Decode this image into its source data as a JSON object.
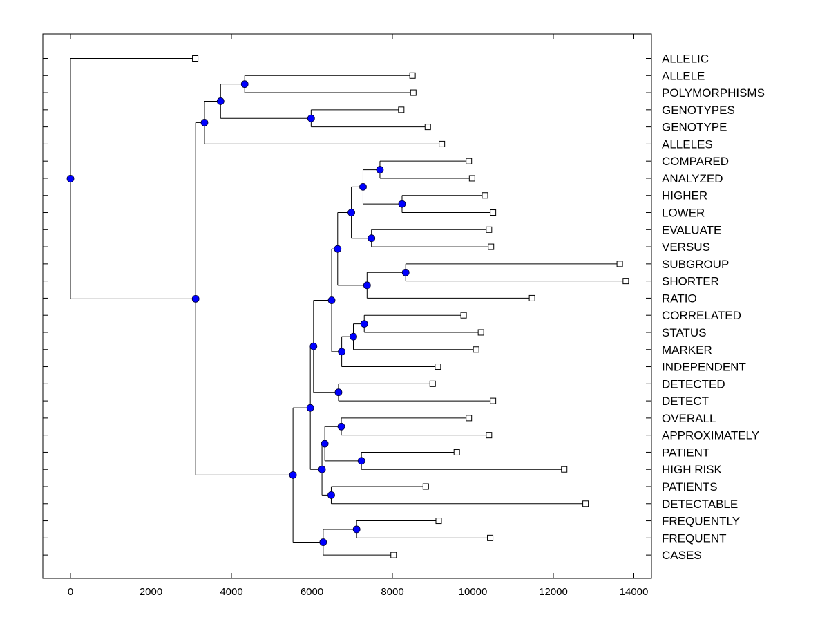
{
  "chart_data": {
    "type": "dendrogram",
    "orientation": "horizontal",
    "xlim": [
      -700,
      14500
    ],
    "x_ticks": [
      0,
      2000,
      4000,
      6000,
      8000,
      10000,
      12000,
      14000
    ],
    "x_tick_labels": [
      "0",
      "2000",
      "4000",
      "6000",
      "8000",
      "10000",
      "12000",
      "14000"
    ],
    "colors": {
      "node_fill": "#0000ff",
      "line": "#000000",
      "leaf_fill": "#ffffff"
    },
    "leaves": [
      {
        "label": "ALLELIC",
        "x": 3100
      },
      {
        "label": "ALLELE",
        "x": 8500
      },
      {
        "label": "POLYMORPHISMS",
        "x": 8520
      },
      {
        "label": "GENOTYPES",
        "x": 8220
      },
      {
        "label": "GENOTYPE",
        "x": 8880
      },
      {
        "label": "ALLELES",
        "x": 9230
      },
      {
        "label": "COMPARED",
        "x": 9900
      },
      {
        "label": "ANALYZED",
        "x": 9980
      },
      {
        "label": "HIGHER",
        "x": 10300
      },
      {
        "label": "LOWER",
        "x": 10500
      },
      {
        "label": "EVALUATE",
        "x": 10400
      },
      {
        "label": "VERSUS",
        "x": 10450
      },
      {
        "label": "SUBGROUP",
        "x": 13650
      },
      {
        "label": "SHORTER",
        "x": 13800
      },
      {
        "label": "RATIO",
        "x": 11470
      },
      {
        "label": "CORRELATED",
        "x": 9770
      },
      {
        "label": "STATUS",
        "x": 10200
      },
      {
        "label": "MARKER",
        "x": 10080
      },
      {
        "label": "INDEPENDENT",
        "x": 9130
      },
      {
        "label": "DETECTED",
        "x": 9000
      },
      {
        "label": "DETECT",
        "x": 10500
      },
      {
        "label": "OVERALL",
        "x": 9900
      },
      {
        "label": "APPROXIMATELY",
        "x": 10400
      },
      {
        "label": "PATIENT",
        "x": 9600
      },
      {
        "label": "HIGH RISK",
        "x": 12270
      },
      {
        "label": "PATIENTS",
        "x": 8830
      },
      {
        "label": "DETECTABLE",
        "x": 12800
      },
      {
        "label": "FREQUENTLY",
        "x": 9150
      },
      {
        "label": "FREQUENT",
        "x": 10430
      },
      {
        "label": "CASES",
        "x": 8030
      }
    ],
    "nodes": [
      {
        "id": "n_allele",
        "x": 4330,
        "children": [
          "L1",
          "L2"
        ]
      },
      {
        "id": "n_genotypes",
        "x": 5980,
        "children": [
          "L3",
          "L4"
        ]
      },
      {
        "id": "n_allele_geno",
        "x": 3730,
        "children": [
          "n_allele",
          "n_genotypes"
        ]
      },
      {
        "id": "n_allele_group",
        "x": 3330,
        "children": [
          "n_allele_geno",
          "L5"
        ]
      },
      {
        "id": "n_compared",
        "x": 7690,
        "children": [
          "L6",
          "L7"
        ]
      },
      {
        "id": "n_higher",
        "x": 8240,
        "children": [
          "L8",
          "L9"
        ]
      },
      {
        "id": "n_comp_high",
        "x": 7270,
        "children": [
          "n_compared",
          "n_higher"
        ]
      },
      {
        "id": "n_evaluate",
        "x": 7480,
        "children": [
          "L10",
          "L11"
        ]
      },
      {
        "id": "n_comp_eval",
        "x": 6980,
        "children": [
          "n_comp_high",
          "n_evaluate"
        ]
      },
      {
        "id": "n_subgroup",
        "x": 8330,
        "children": [
          "L12",
          "L13"
        ]
      },
      {
        "id": "n_sub_ratio",
        "x": 7370,
        "children": [
          "n_subgroup",
          "L14"
        ]
      },
      {
        "id": "n_upper_mid",
        "x": 6640,
        "children": [
          "n_comp_eval",
          "n_sub_ratio"
        ]
      },
      {
        "id": "n_correlated",
        "x": 7300,
        "children": [
          "L15",
          "L16"
        ]
      },
      {
        "id": "n_corr_marker",
        "x": 7030,
        "children": [
          "n_correlated",
          "L17"
        ]
      },
      {
        "id": "n_corr_indep",
        "x": 6740,
        "children": [
          "n_corr_marker",
          "L18"
        ]
      },
      {
        "id": "n_mid_a",
        "x": 6490,
        "children": [
          "n_upper_mid",
          "n_corr_indep"
        ]
      },
      {
        "id": "n_detected",
        "x": 6660,
        "children": [
          "L19",
          "L20"
        ]
      },
      {
        "id": "n_mid_b",
        "x": 6040,
        "children": [
          "n_mid_a",
          "n_detected"
        ]
      },
      {
        "id": "n_overall",
        "x": 6730,
        "children": [
          "L21",
          "L22"
        ]
      },
      {
        "id": "n_patient",
        "x": 7230,
        "children": [
          "L23",
          "L24"
        ]
      },
      {
        "id": "n_over_pat",
        "x": 6320,
        "children": [
          "n_overall",
          "n_patient"
        ]
      },
      {
        "id": "n_patients",
        "x": 6480,
        "children": [
          "L25",
          "L26"
        ]
      },
      {
        "id": "n_lower_a",
        "x": 6250,
        "children": [
          "n_over_pat",
          "n_patients"
        ]
      },
      {
        "id": "n_lower_mid",
        "x": 5960,
        "children": [
          "n_mid_b",
          "n_lower_a"
        ]
      },
      {
        "id": "n_frequently",
        "x": 7110,
        "children": [
          "L27",
          "L28"
        ]
      },
      {
        "id": "n_freq_cases",
        "x": 6280,
        "children": [
          "n_frequently",
          "L29"
        ]
      },
      {
        "id": "n_lower",
        "x": 5530,
        "children": [
          "n_lower_mid",
          "n_freq_cases"
        ]
      },
      {
        "id": "n_main_lower",
        "x": 3110,
        "children": [
          "n_allele_group",
          "n_lower"
        ]
      },
      {
        "id": "n_root",
        "x": 0,
        "children": [
          "L0",
          "n_main_lower"
        ]
      }
    ]
  }
}
